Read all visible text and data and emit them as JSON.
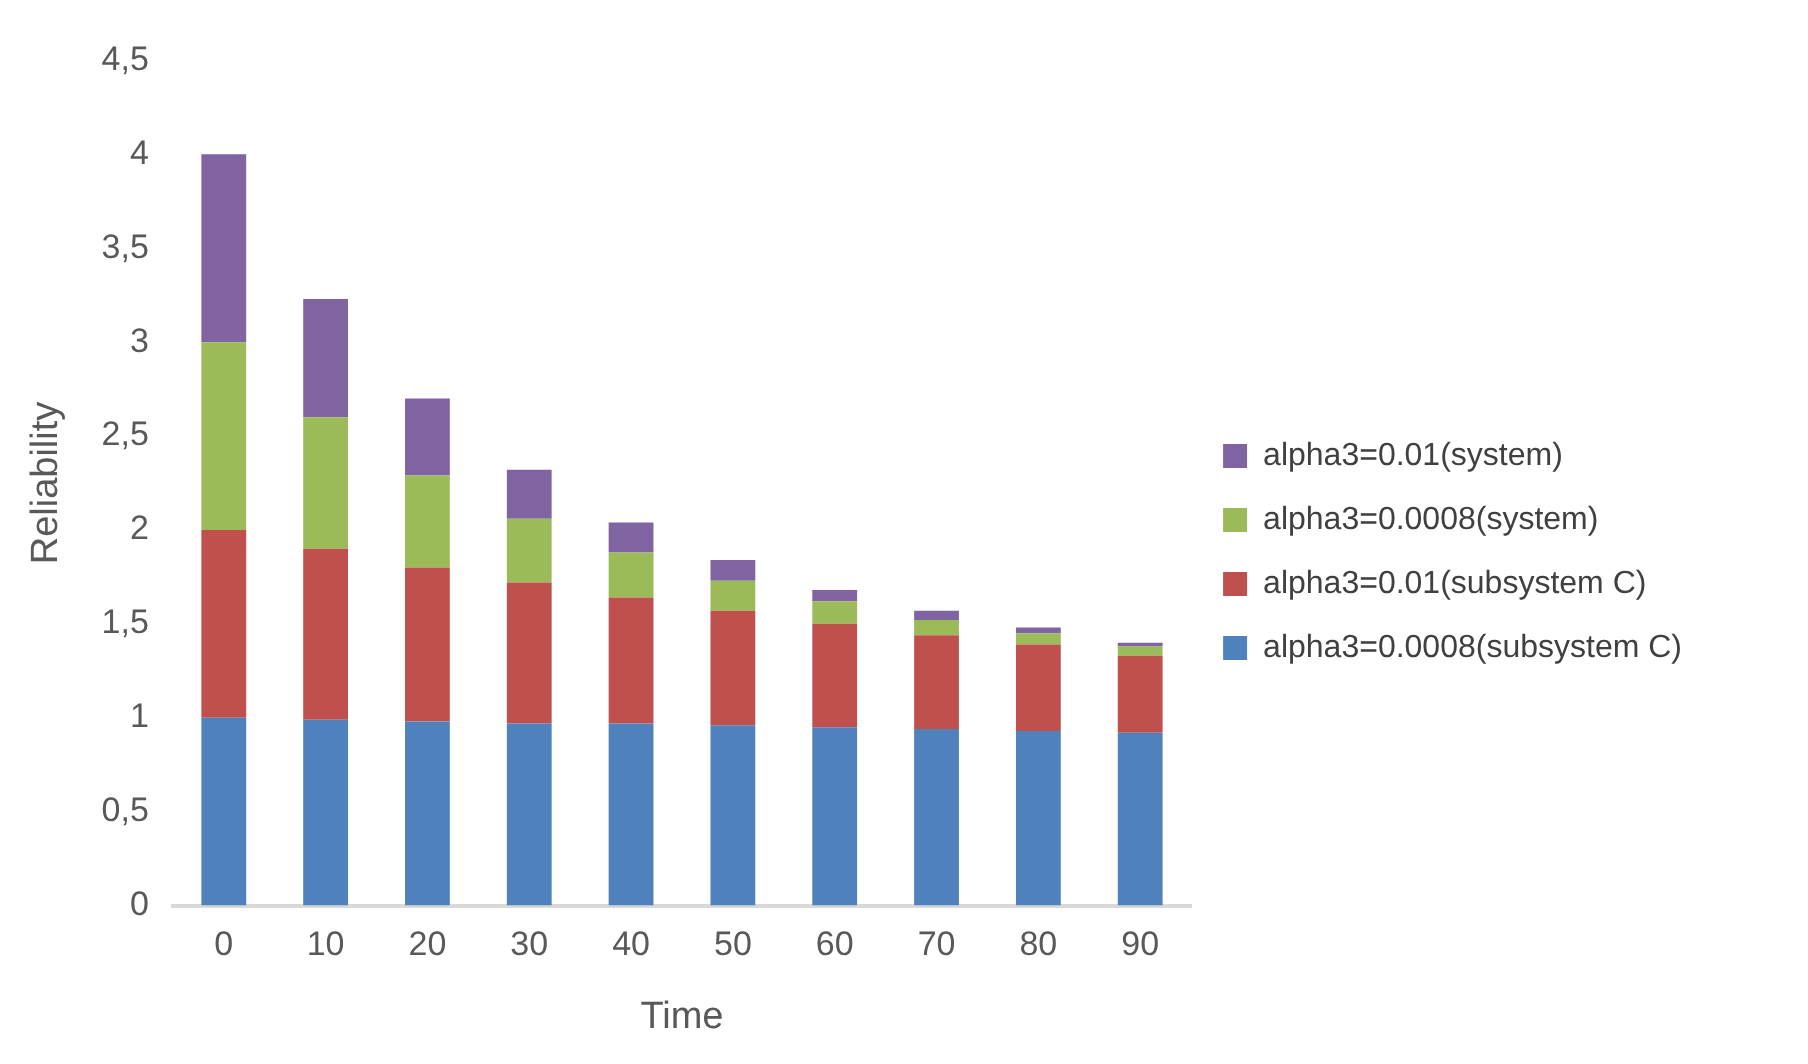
{
  "chart_data": {
    "type": "bar",
    "stacked": true,
    "xlabel": "Time",
    "ylabel": "Reliability",
    "categories": [
      "0",
      "10",
      "20",
      "30",
      "40",
      "50",
      "60",
      "70",
      "80",
      "90"
    ],
    "series": [
      {
        "name": "alpha3=0.0008(subsystem C)",
        "color": "#4f81bd",
        "values": [
          1,
          0.99,
          0.98,
          0.97,
          0.97,
          0.96,
          0.95,
          0.94,
          0.93,
          0.92
        ]
      },
      {
        "name": "alpha3=0.01(subsystem C)",
        "color": "#c0504d",
        "values": [
          1,
          0.91,
          0.82,
          0.75,
          0.67,
          0.61,
          0.55,
          0.5,
          0.46,
          0.41
        ]
      },
      {
        "name": "alpha3=0.0008(system)",
        "color": "#9bbb59",
        "values": [
          1,
          0.7,
          0.49,
          0.34,
          0.24,
          0.16,
          0.12,
          0.08,
          0.06,
          0.05
        ]
      },
      {
        "name": "alpha3=0.01(system)",
        "color": "#8064a2",
        "values": [
          1,
          0.63,
          0.41,
          0.26,
          0.16,
          0.11,
          0.06,
          0.05,
          0.03,
          0.02
        ]
      }
    ],
    "ylim": [
      0,
      4.5
    ],
    "yticks": [
      0,
      {
        "value": 0.5,
        "label": "0,5"
      },
      1,
      {
        "value": 1.5,
        "label": "1,5"
      },
      2,
      {
        "value": 2.5,
        "label": "2,5"
      },
      3,
      {
        "value": 3.5,
        "label": "3,5"
      },
      4,
      {
        "value": 4.5,
        "label": "4,5"
      }
    ],
    "grid": false,
    "legend": "right"
  }
}
